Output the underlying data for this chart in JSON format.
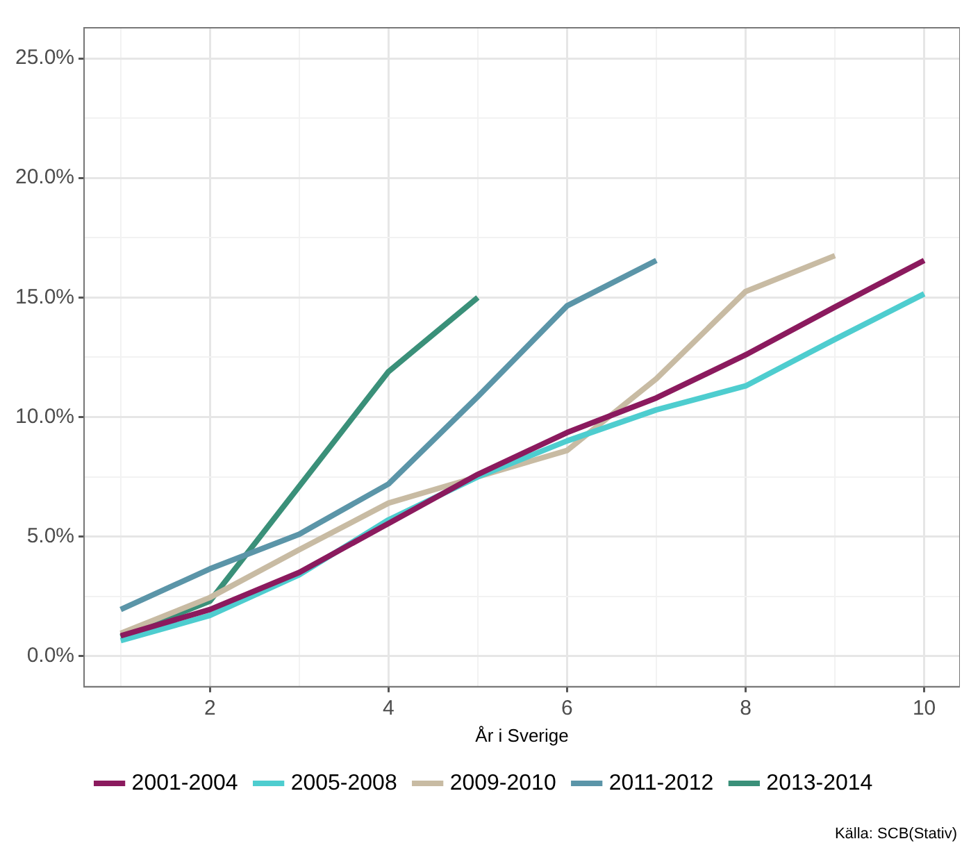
{
  "chart_data": {
    "type": "line",
    "xlabel": "År i Sverige",
    "x": [
      1,
      2,
      3,
      4,
      5,
      6,
      7,
      8,
      9,
      10
    ],
    "xlim": [
      0.59,
      10.4
    ],
    "xticks": [
      {
        "value": 1,
        "label": null
      },
      2,
      {
        "value": 3,
        "label": null
      },
      4,
      {
        "value": 5,
        "label": null
      },
      6,
      {
        "value": 7,
        "label": null
      },
      8,
      {
        "value": 9,
        "label": null
      },
      10
    ],
    "ylim": [
      -1.28,
      26.28
    ],
    "yticks": [
      {
        "value": 0,
        "label": "0.0%"
      },
      {
        "value": 2.5,
        "label": null
      },
      {
        "value": 5,
        "label": "5.0%"
      },
      {
        "value": 7.5,
        "label": null
      },
      {
        "value": 10,
        "label": "10.0%"
      },
      {
        "value": 12.5,
        "label": null
      },
      {
        "value": 15,
        "label": "15.0%"
      },
      {
        "value": 17.5,
        "label": null
      },
      {
        "value": 20,
        "label": "20.0%"
      },
      {
        "value": 22.5,
        "label": null
      },
      {
        "value": 25,
        "label": "25.0%"
      }
    ],
    "grid": true,
    "legend": "bottom",
    "marker": "none",
    "line_style": "solid",
    "annotations": [
      "Källa: SCB(Stativ)"
    ],
    "series": [
      {
        "name": "2001-2004",
        "color": "#8b1a5e",
        "values": [
          0.85,
          1.95,
          3.5,
          5.55,
          7.6,
          9.35,
          10.8,
          12.6,
          14.6,
          16.55
        ]
      },
      {
        "name": "2005-2008",
        "color": "#4ecdcf",
        "values": [
          0.65,
          1.7,
          3.4,
          5.7,
          7.5,
          9.0,
          10.3,
          11.3,
          13.25,
          15.15
        ]
      },
      {
        "name": "2009-2010",
        "color": "#c8bba3",
        "x": [
          1,
          2,
          3,
          4,
          5,
          6,
          7,
          8,
          9
        ],
        "values": [
          0.95,
          2.45,
          4.45,
          6.4,
          7.5,
          8.6,
          11.6,
          15.25,
          16.75
        ]
      },
      {
        "name": "2011-2012",
        "color": "#5b95a8",
        "x": [
          1,
          2,
          3,
          4,
          5,
          6,
          7
        ],
        "values": [
          1.95,
          3.65,
          5.1,
          7.2,
          10.85,
          14.65,
          16.55
        ]
      },
      {
        "name": "2013-2014",
        "color": "#3a9079",
        "x": [
          1,
          2,
          3,
          4,
          5
        ],
        "values": [
          0.8,
          2.3,
          7.1,
          11.9,
          15.0
        ]
      }
    ]
  }
}
